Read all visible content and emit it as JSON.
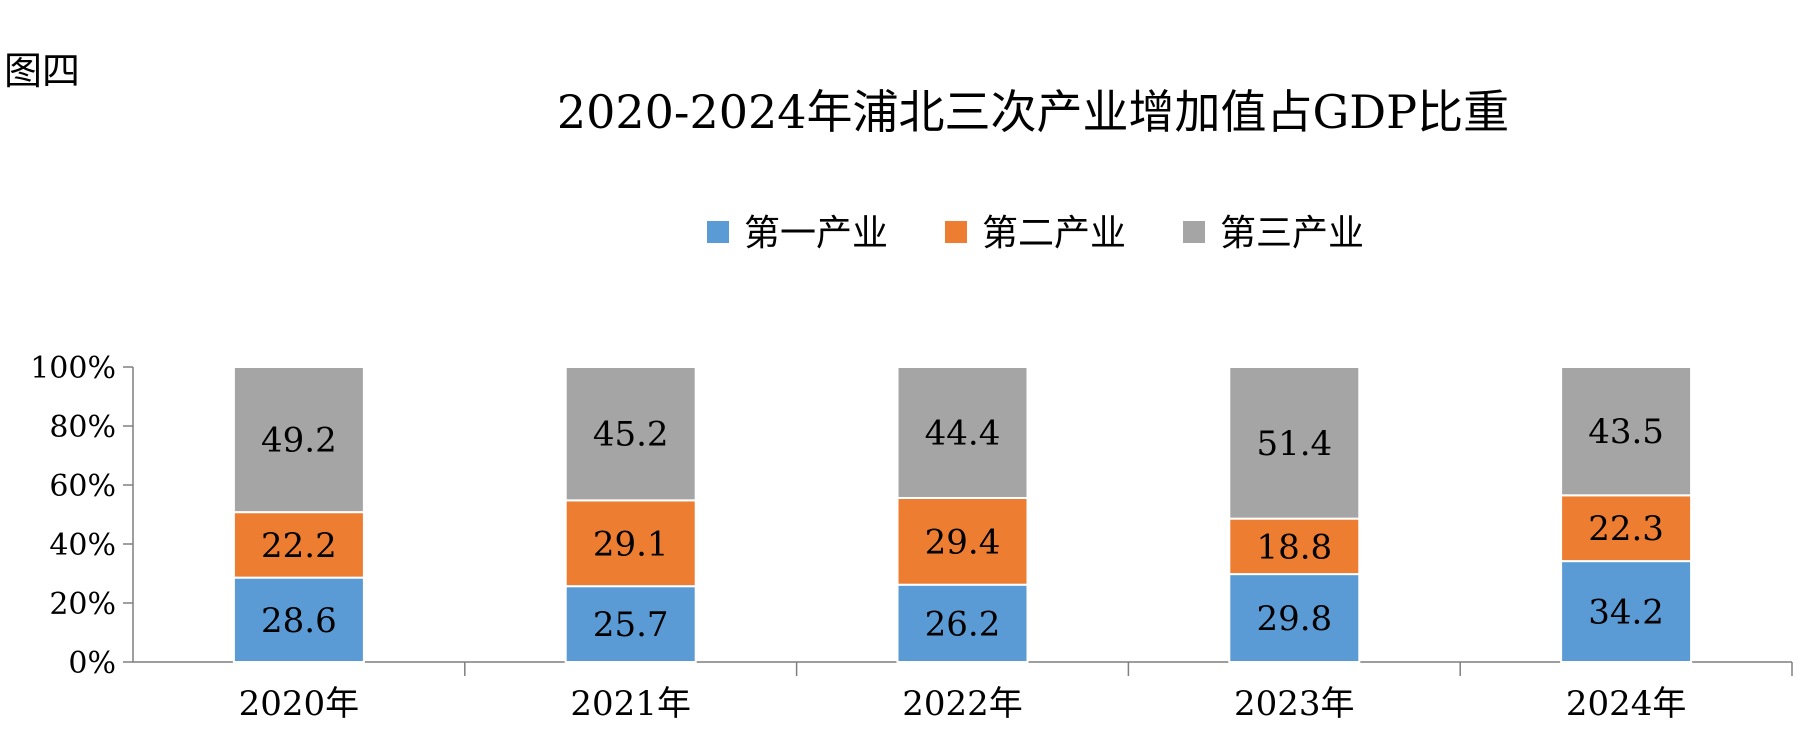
{
  "figure_label": "图四",
  "chart_data": {
    "type": "bar",
    "stacked": true,
    "percent_stacked": true,
    "title": "2020-2024年浦北三次产业增加值占GDP比重",
    "categories": [
      "2020年",
      "2021年",
      "2022年",
      "2023年",
      "2024年"
    ],
    "series": [
      {
        "name": "第一产业",
        "color": "#5b9bd5",
        "values": [
          28.6,
          25.7,
          26.2,
          29.8,
          34.2
        ]
      },
      {
        "name": "第二产业",
        "color": "#ed7d31",
        "values": [
          22.2,
          29.1,
          29.4,
          18.8,
          22.3
        ]
      },
      {
        "name": "第三产业",
        "color": "#a5a5a5",
        "values": [
          49.2,
          45.2,
          44.4,
          51.4,
          43.5
        ]
      }
    ],
    "ylim": [
      0,
      100
    ],
    "yticks": [
      "0%",
      "20%",
      "40%",
      "60%",
      "80%",
      "100%"
    ],
    "legend_position": "top",
    "grid": false
  }
}
